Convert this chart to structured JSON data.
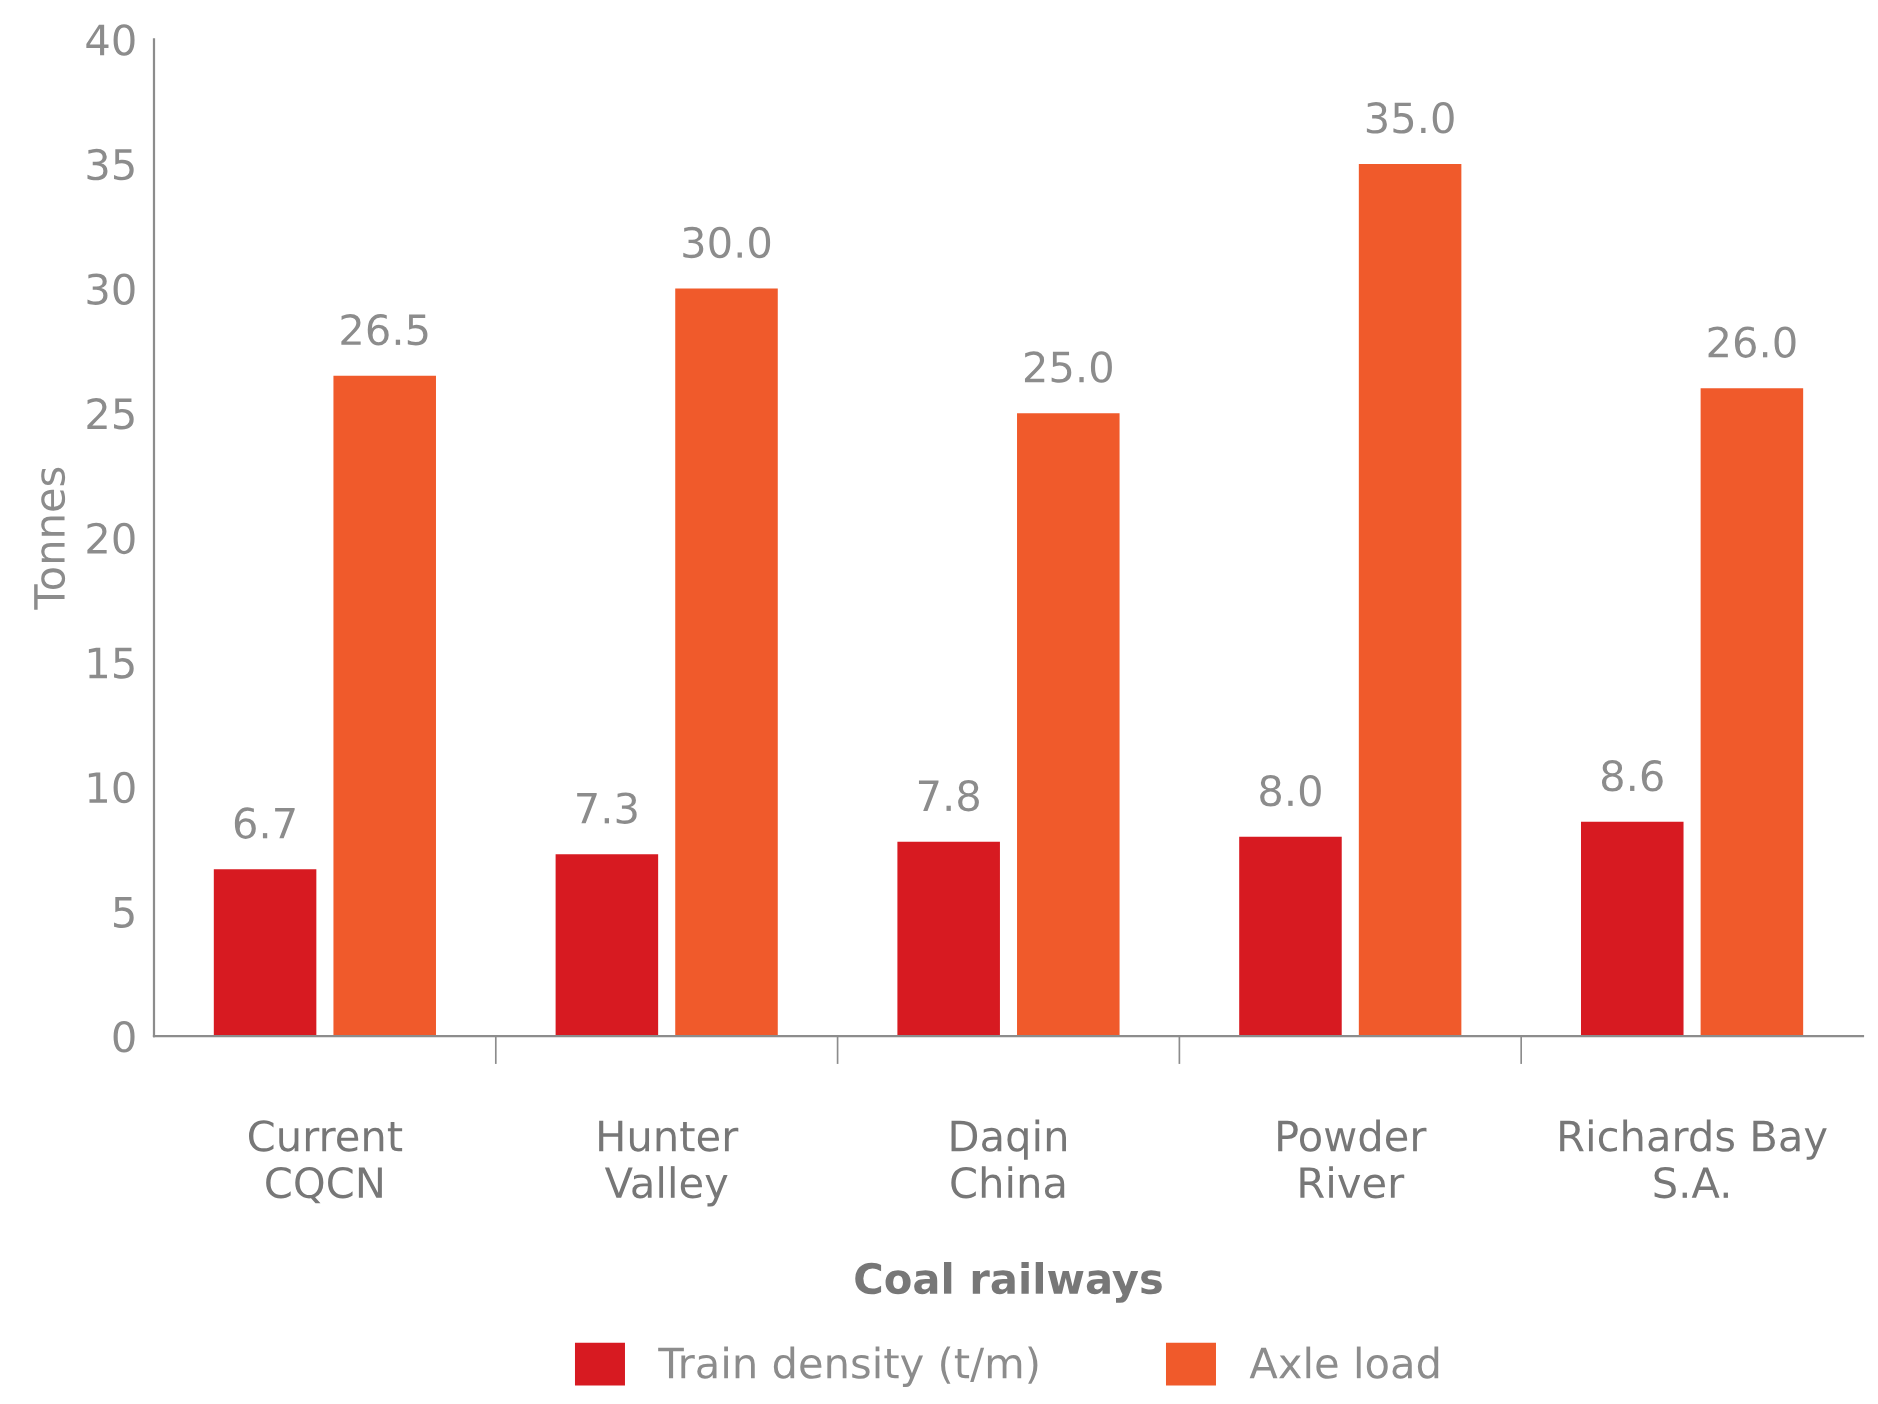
{
  "chart_data": {
    "type": "bar",
    "xlabel": "Coal railways",
    "ylabel": "Tonnes",
    "categories": [
      "Current\nCQCN",
      "Hunter\nValley",
      "Daqin\nChina",
      "Powder\nRiver",
      "Richards Bay\nS.A."
    ],
    "series": [
      {
        "name": "Train density (t/m)",
        "color": "#d71a21",
        "values": [
          6.7,
          7.3,
          7.8,
          8.0,
          8.6
        ],
        "value_labels": [
          "6.7",
          "7.3",
          "7.8",
          "8.0",
          "8.6"
        ]
      },
      {
        "name": "Axle load",
        "color": "#f05a2b",
        "values": [
          26.5,
          30.0,
          25.0,
          35.0,
          26.0
        ],
        "value_labels": [
          "26.5",
          "30.0",
          "25.0",
          "35.0",
          "26.0"
        ]
      }
    ],
    "ylim": [
      0,
      40
    ],
    "yticks": [
      0,
      5,
      10,
      15,
      20,
      25,
      30,
      35,
      40
    ],
    "grid": false,
    "legend": "bottom"
  }
}
